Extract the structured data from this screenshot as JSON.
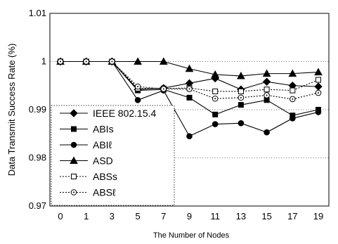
{
  "chart_data": {
    "type": "line",
    "title": "",
    "xlabel": "The Number of Nodes",
    "ylabel": "Data Transmit Success Rate (%)",
    "categories": [
      "0",
      "1",
      "3",
      "5",
      "7",
      "9",
      "11",
      "13",
      "15",
      "17",
      "19"
    ],
    "y_ticks": [
      "0.97",
      "0.98",
      "0.99",
      "1",
      "1.01"
    ],
    "ylim": [
      0.97,
      1.01
    ],
    "grid": "horizontal dotted",
    "legend_position": "lower-left",
    "series": [
      {
        "name": "IEEE 802.15.4",
        "marker": "diamond",
        "fill": "filled",
        "dash": "solid",
        "values": [
          1.0,
          1.0,
          1.0,
          0.9942,
          0.9945,
          0.9955,
          0.9965,
          0.9942,
          0.9958,
          0.995,
          0.9948
        ]
      },
      {
        "name": "ABIs",
        "marker": "square",
        "fill": "filled",
        "dash": "solid",
        "values": [
          1.0,
          1.0,
          1.0,
          0.994,
          0.9942,
          0.9925,
          0.989,
          0.991,
          0.992,
          0.9888,
          0.99
        ]
      },
      {
        "name": "ABIℓ",
        "marker": "circle",
        "fill": "filled",
        "dash": "solid",
        "values": [
          1.0,
          1.0,
          1.0,
          0.992,
          0.994,
          0.9845,
          0.987,
          0.9872,
          0.9853,
          0.9882,
          0.9895
        ]
      },
      {
        "name": "ASD",
        "marker": "triangle",
        "fill": "filled",
        "dash": "solid",
        "values": [
          1.0,
          1.0,
          1.0,
          1.0,
          1.0,
          0.9985,
          0.9973,
          0.997,
          0.9975,
          0.9975,
          0.9978
        ]
      },
      {
        "name": "ABSs",
        "marker": "square",
        "fill": "open",
        "dash": "dotted",
        "values": [
          1.0,
          1.0,
          1.0,
          0.9944,
          0.9944,
          0.9945,
          0.9938,
          0.9938,
          0.9942,
          0.994,
          0.9962
        ]
      },
      {
        "name": "ABSℓ",
        "marker": "circle",
        "fill": "open",
        "dash": "dotted",
        "values": [
          1.0,
          1.0,
          1.0,
          0.9948,
          0.9943,
          0.9943,
          0.9923,
          0.9925,
          0.993,
          0.9922,
          0.9935
        ]
      }
    ]
  }
}
